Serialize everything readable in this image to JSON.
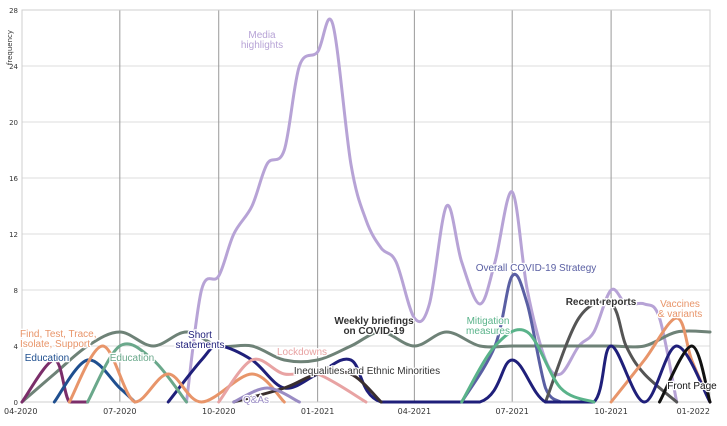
{
  "chart_data": {
    "type": "line",
    "ylabel": "frequency",
    "ylim": [
      0,
      28
    ],
    "y_ticks": [
      0,
      4,
      8,
      12,
      16,
      20,
      24,
      28
    ],
    "x_ticks": [
      "04-2020",
      "07-2020",
      "10-2020",
      "01-2021",
      "04-2021",
      "07-2021",
      "10-2021",
      "01-2022"
    ],
    "x_range": [
      "2020-04",
      "2022-01"
    ],
    "grid": true,
    "series": [
      {
        "name": "Media highlights",
        "color": "#b7a3d6",
        "points": [
          [
            "2020-09-01",
            0
          ],
          [
            "2020-09-15",
            8
          ],
          [
            "2020-10-01",
            9
          ],
          [
            "2020-10-15",
            12
          ],
          [
            "2020-11-01",
            14
          ],
          [
            "2020-11-15",
            17
          ],
          [
            "2020-12-01",
            18
          ],
          [
            "2020-12-15",
            24
          ],
          [
            "2021-01-01",
            25
          ],
          [
            "2021-01-15",
            27
          ],
          [
            "2021-02-01",
            17
          ],
          [
            "2021-02-15",
            13
          ],
          [
            "2021-03-01",
            11
          ],
          [
            "2021-03-15",
            10
          ],
          [
            "2021-04-01",
            6
          ],
          [
            "2021-04-15",
            7
          ],
          [
            "2021-05-01",
            14
          ],
          [
            "2021-05-15",
            10
          ],
          [
            "2021-06-01",
            7
          ],
          [
            "2021-06-15",
            10
          ],
          [
            "2021-07-01",
            15
          ],
          [
            "2021-07-15",
            8
          ],
          [
            "2021-08-01",
            3
          ],
          [
            "2021-08-15",
            2
          ],
          [
            "2021-09-01",
            4
          ],
          [
            "2021-09-15",
            5
          ],
          [
            "2021-10-01",
            8
          ],
          [
            "2021-10-15",
            7
          ],
          [
            "2021-11-01",
            7
          ],
          [
            "2021-11-15",
            6
          ],
          [
            "2021-12-01",
            0
          ]
        ]
      },
      {
        "name": "Weekly briefings on COVID-19",
        "color": "#6e8277",
        "points": [
          [
            "2020-04-01",
            0
          ],
          [
            "2020-05-01",
            2
          ],
          [
            "2020-06-01",
            4
          ],
          [
            "2020-07-01",
            5
          ],
          [
            "2020-08-01",
            4
          ],
          [
            "2020-09-01",
            5
          ],
          [
            "2020-10-01",
            4
          ],
          [
            "2020-11-01",
            4
          ],
          [
            "2020-12-01",
            3
          ],
          [
            "2021-01-01",
            3
          ],
          [
            "2021-02-01",
            4
          ],
          [
            "2021-03-01",
            5
          ],
          [
            "2021-04-01",
            4
          ],
          [
            "2021-05-01",
            5
          ],
          [
            "2021-06-01",
            4
          ],
          [
            "2021-07-01",
            4
          ],
          [
            "2021-08-01",
            4
          ],
          [
            "2021-09-01",
            4
          ],
          [
            "2021-10-01",
            4
          ],
          [
            "2021-11-01",
            4
          ],
          [
            "2021-12-01",
            5
          ],
          [
            "2022-01-01",
            5
          ]
        ]
      },
      {
        "name": "Overall COVID-19 Strategy",
        "color": "#5a5fa3",
        "points": [
          [
            "2021-05-15",
            0
          ],
          [
            "2021-06-15",
            4
          ],
          [
            "2021-07-01",
            9
          ],
          [
            "2021-07-15",
            7
          ],
          [
            "2021-08-01",
            1
          ],
          [
            "2021-08-15",
            0
          ]
        ]
      },
      {
        "name": "Recent reports",
        "color": "#555555",
        "points": [
          [
            "2021-08-01",
            0
          ],
          [
            "2021-09-01",
            6
          ],
          [
            "2021-10-01",
            7
          ],
          [
            "2021-10-15",
            4
          ],
          [
            "2021-11-01",
            2
          ],
          [
            "2021-12-01",
            0
          ]
        ]
      },
      {
        "name": "Vaccines & variants",
        "color": "#e8956a",
        "points": [
          [
            "2021-10-01",
            0
          ],
          [
            "2021-11-01",
            3
          ],
          [
            "2021-12-01",
            6
          ],
          [
            "2021-12-15",
            3
          ],
          [
            "2022-01-01",
            0
          ]
        ]
      },
      {
        "name": "Short statements",
        "color": "#1f1f7a",
        "points": [
          [
            "2020-08-15",
            0
          ],
          [
            "2020-09-15",
            3
          ],
          [
            "2020-10-01",
            4
          ],
          [
            "2020-11-01",
            3
          ],
          [
            "2020-12-01",
            1
          ],
          [
            "2021-01-01",
            2
          ],
          [
            "2021-02-01",
            3
          ],
          [
            "2021-03-01",
            0
          ],
          [
            "2021-06-01",
            0
          ],
          [
            "2021-07-01",
            3
          ],
          [
            "2021-08-01",
            0
          ],
          [
            "2021-09-15",
            0
          ],
          [
            "2021-10-01",
            4
          ],
          [
            "2021-11-01",
            0
          ],
          [
            "2021-12-01",
            4
          ],
          [
            "2022-01-01",
            0
          ]
        ]
      },
      {
        "name": "Education",
        "color": "#7b2e6a",
        "points": [
          [
            "2020-04-01",
            0
          ],
          [
            "2020-05-01",
            3
          ],
          [
            "2020-05-15",
            0
          ],
          [
            "2020-06-01",
            0
          ]
        ]
      },
      {
        "name": "Education",
        "color": "#1f4f8f",
        "points": [
          [
            "2020-05-01",
            0
          ],
          [
            "2020-06-01",
            3
          ],
          [
            "2020-07-01",
            1
          ],
          [
            "2020-07-15",
            0
          ]
        ]
      },
      {
        "name": "Education",
        "color": "#6aa88b",
        "points": [
          [
            "2020-06-01",
            0
          ],
          [
            "2020-07-01",
            4
          ],
          [
            "2020-08-01",
            3
          ],
          [
            "2020-09-01",
            0
          ]
        ]
      },
      {
        "name": "Find, Test, Trace, Isolate, Support",
        "color": "#e8956a",
        "points": [
          [
            "2020-05-15",
            0
          ],
          [
            "2020-06-15",
            4
          ],
          [
            "2020-07-15",
            0
          ],
          [
            "2020-08-15",
            2
          ],
          [
            "2020-09-15",
            0
          ],
          [
            "2020-11-01",
            2
          ],
          [
            "2020-12-01",
            0
          ]
        ]
      },
      {
        "name": "Lockdowns",
        "color": "#e8a3a3",
        "points": [
          [
            "2020-10-01",
            0
          ],
          [
            "2020-11-01",
            3
          ],
          [
            "2020-12-01",
            2
          ],
          [
            "2021-01-01",
            2
          ],
          [
            "2021-02-15",
            0
          ]
        ]
      },
      {
        "name": "Inequalities and Ethnic Minorities",
        "color": "#3a2f2f",
        "points": [
          [
            "2020-10-15",
            0
          ],
          [
            "2020-12-01",
            1
          ],
          [
            "2021-01-01",
            2
          ],
          [
            "2021-02-01",
            2
          ],
          [
            "2021-03-01",
            0
          ]
        ]
      },
      {
        "name": "Q&As",
        "color": "#9a8cc4",
        "points": [
          [
            "2020-10-15",
            0
          ],
          [
            "2020-11-15",
            1
          ],
          [
            "2020-12-15",
            0
          ]
        ]
      },
      {
        "name": "Mitigation measures",
        "color": "#5ab38a",
        "points": [
          [
            "2021-05-15",
            0
          ],
          [
            "2021-06-15",
            4
          ],
          [
            "2021-07-15",
            5
          ],
          [
            "2021-08-15",
            1
          ],
          [
            "2021-09-15",
            0
          ]
        ]
      },
      {
        "name": "Front Page",
        "color": "#111111",
        "points": [
          [
            "2021-11-15",
            0
          ],
          [
            "2021-12-15",
            4
          ],
          [
            "2022-01-01",
            0
          ]
        ]
      }
    ],
    "annotations": [
      {
        "text": "Media highlights",
        "color": "#b7a3d6"
      },
      {
        "text": "Overall COVID-19 Strategy",
        "color": "#5a5fa3"
      },
      {
        "text": "Recent reports",
        "color": "#333333"
      },
      {
        "text": "Vaccines & variants",
        "color": "#e8956a"
      },
      {
        "text": "Weekly briefings on COVID-19",
        "color": "#333333"
      },
      {
        "text": "Mitigation measures",
        "color": "#5ab38a"
      },
      {
        "text": "Find, Test, Trace, Isolate, Support",
        "color": "#e8956a"
      },
      {
        "text": "Short statements",
        "color": "#1f1f7a"
      },
      {
        "text": "Education",
        "color": "#6aa88b"
      },
      {
        "text": "Education",
        "color": "#1f4f8f"
      },
      {
        "text": "Lockdowns",
        "color": "#e8a3a3"
      },
      {
        "text": "Inequalities and Ethnic Minorities",
        "color": "#333333"
      },
      {
        "text": "Q&As",
        "color": "#9a8cc4"
      },
      {
        "text": "Front Page",
        "color": "#111111"
      }
    ]
  }
}
